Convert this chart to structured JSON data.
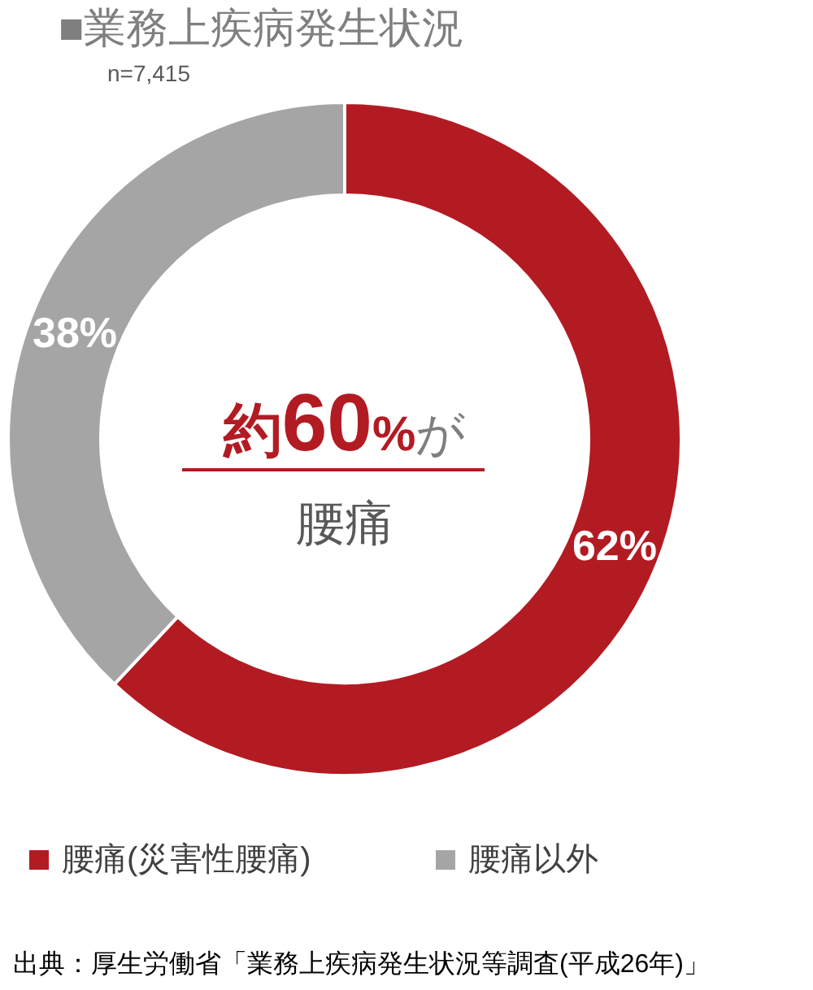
{
  "chart_data": {
    "type": "donut",
    "title": "■業務上疾病発生状況",
    "subtitle": "n=7,415",
    "categories": [
      "腰痛(災害性腰痛)",
      "腰痛以外"
    ],
    "values": [
      62,
      38
    ],
    "colors": [
      "#b31b23",
      "#a5a5a5"
    ],
    "value_labels": [
      "62%",
      "38%"
    ],
    "legend": "bottom",
    "annotations": [
      "約60%が",
      "腰痛",
      "出典：厚生労働省「業務上疾病発生状況等調査(平成26年)」"
    ]
  }
}
